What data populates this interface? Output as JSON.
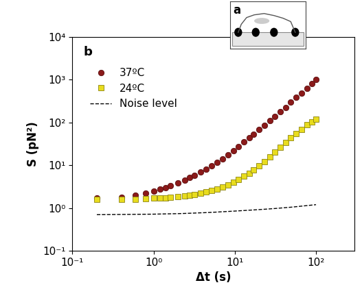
{
  "chart_data": {
    "type": "scatter",
    "panel_label": "b",
    "inset_label": "a",
    "x_label": "Δt (s)",
    "y_label": "S (pN²)",
    "log": true,
    "grid": false,
    "legend": "upper left",
    "xlim": [
      0.1,
      300
    ],
    "ylim": [
      0.1,
      10000
    ],
    "xticks": [
      {
        "value": 0.1,
        "label": "10⁻¹"
      },
      {
        "value": 1,
        "label": "10⁰"
      },
      {
        "value": 10,
        "label": "10¹"
      },
      {
        "value": 100,
        "label": "10²"
      }
    ],
    "yticks": [
      {
        "value": 0.1,
        "label": "10⁻¹"
      },
      {
        "value": 1,
        "label": "10⁰"
      },
      {
        "value": 10,
        "label": "10¹"
      },
      {
        "value": 100,
        "label": "10²"
      },
      {
        "value": 1000,
        "label": "10³"
      },
      {
        "value": 10000,
        "label": "10⁴"
      }
    ],
    "series": [
      {
        "name": "37ºC",
        "type": "scatter",
        "color": "#8b1a1a",
        "marker": "circle",
        "x": [
          0.2,
          0.4,
          0.6,
          0.8,
          1.0,
          1.2,
          1.4,
          1.6,
          2.0,
          2.4,
          2.8,
          3.2,
          3.8,
          4.4,
          5.2,
          6.0,
          7.0,
          8.2,
          9.6,
          11,
          13,
          15,
          17,
          20,
          23,
          27,
          31,
          36,
          42,
          49,
          57,
          66,
          77,
          89,
          100
        ],
        "values": [
          1.7,
          1.8,
          2.0,
          2.2,
          2.5,
          2.8,
          3.0,
          3.3,
          3.9,
          4.5,
          5.2,
          5.9,
          7.0,
          8.2,
          9.8,
          11.5,
          14,
          17.5,
          22,
          27,
          35,
          44,
          54,
          70,
          87,
          112,
          140,
          178,
          228,
          298,
          383,
          488,
          638,
          818,
          1000
        ]
      },
      {
        "name": "24ºC",
        "type": "scatter",
        "color": "#e8dc1e",
        "marker": "square",
        "x": [
          0.2,
          0.4,
          0.6,
          0.8,
          1.0,
          1.2,
          1.4,
          1.6,
          2.0,
          2.4,
          2.8,
          3.2,
          3.8,
          4.4,
          5.2,
          6.0,
          7.0,
          8.2,
          9.6,
          11,
          13,
          15,
          17,
          20,
          23,
          27,
          31,
          36,
          42,
          49,
          57,
          66,
          77,
          89,
          100
        ],
        "values": [
          1.6,
          1.6,
          1.6,
          1.65,
          1.7,
          1.7,
          1.75,
          1.8,
          1.85,
          1.9,
          2.0,
          2.1,
          2.2,
          2.4,
          2.6,
          2.8,
          3.1,
          3.5,
          4.0,
          4.6,
          5.5,
          6.6,
          7.8,
          9.8,
          12,
          16,
          20,
          26,
          34,
          44,
          56,
          70,
          88,
          105,
          120
        ]
      },
      {
        "name": "Noise level",
        "type": "line",
        "color": "#000000",
        "line_style": "dashed",
        "x": [
          0.2,
          0.5,
          1,
          2,
          3,
          5,
          10,
          20,
          30,
          50,
          100
        ],
        "values": [
          0.7,
          0.71,
          0.72,
          0.74,
          0.76,
          0.79,
          0.85,
          0.92,
          0.97,
          1.05,
          1.2
        ]
      }
    ]
  }
}
